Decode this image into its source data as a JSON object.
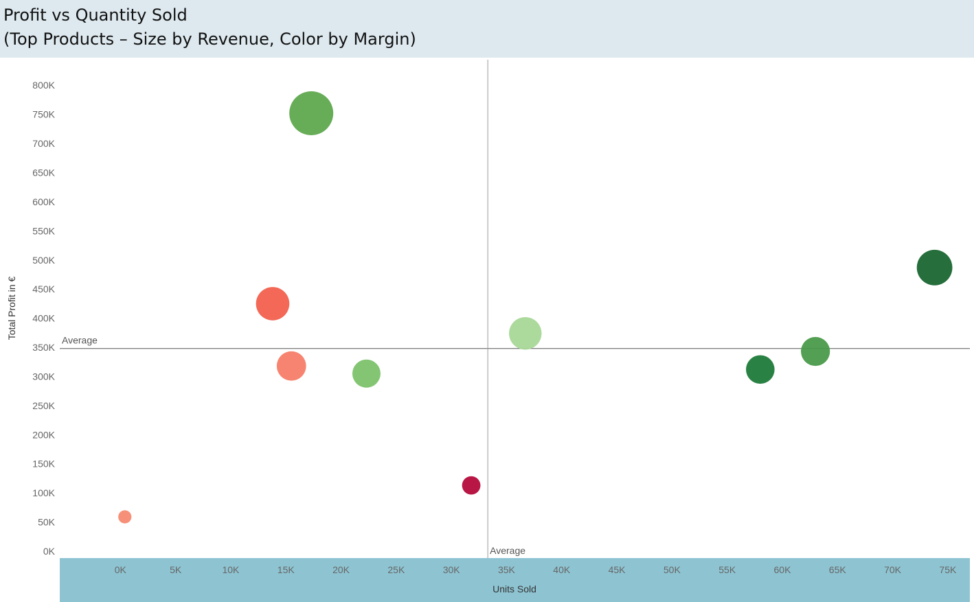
{
  "header": {
    "title_line1": "Profit vs Quantity Sold",
    "title_line2": "(Top Products – Size by Revenue, Color by Margin)"
  },
  "colors": {
    "title_background": "#dde9ef",
    "x_axis_background": "#8ec4d2",
    "reference_line": "#555555"
  },
  "chart_data": {
    "type": "scatter",
    "title": "Profit vs Quantity Sold",
    "subtitle": "(Top Products – Size by Revenue, Color by Margin)",
    "xlabel": "Units Sold",
    "ylabel": "Total Profit in €",
    "xlim": [
      -5500,
      77000
    ],
    "ylim": [
      0,
      825000
    ],
    "x_ticks": [
      {
        "value": 0,
        "label": "0K"
      },
      {
        "value": 5000,
        "label": "5K"
      },
      {
        "value": 10000,
        "label": "10K"
      },
      {
        "value": 15000,
        "label": "15K"
      },
      {
        "value": 20000,
        "label": "20K"
      },
      {
        "value": 25000,
        "label": "25K"
      },
      {
        "value": 30000,
        "label": "30K"
      },
      {
        "value": 35000,
        "label": "35K"
      },
      {
        "value": 40000,
        "label": "40K"
      },
      {
        "value": 45000,
        "label": "45K"
      },
      {
        "value": 50000,
        "label": "50K"
      },
      {
        "value": 55000,
        "label": "55K"
      },
      {
        "value": 60000,
        "label": "60K"
      },
      {
        "value": 65000,
        "label": "65K"
      },
      {
        "value": 70000,
        "label": "70K"
      },
      {
        "value": 75000,
        "label": "75K"
      }
    ],
    "y_ticks": [
      {
        "value": 0,
        "label": "0K"
      },
      {
        "value": 50000,
        "label": "50K"
      },
      {
        "value": 100000,
        "label": "100K"
      },
      {
        "value": 150000,
        "label": "150K"
      },
      {
        "value": 200000,
        "label": "200K"
      },
      {
        "value": 250000,
        "label": "250K"
      },
      {
        "value": 300000,
        "label": "300K"
      },
      {
        "value": 350000,
        "label": "350K"
      },
      {
        "value": 400000,
        "label": "400K"
      },
      {
        "value": 450000,
        "label": "450K"
      },
      {
        "value": 500000,
        "label": "500K"
      },
      {
        "value": 550000,
        "label": "550K"
      },
      {
        "value": 600000,
        "label": "600K"
      },
      {
        "value": 650000,
        "label": "650K"
      },
      {
        "value": 700000,
        "label": "700K"
      },
      {
        "value": 750000,
        "label": "750K"
      },
      {
        "value": 800000,
        "label": "800K"
      }
    ],
    "points": [
      {
        "x": 17300,
        "y": 752000,
        "size": 1.0,
        "color": "#5fa84e"
      },
      {
        "x": 13800,
        "y": 425000,
        "size": 0.76,
        "color": "#f2604d"
      },
      {
        "x": 15500,
        "y": 318000,
        "size": 0.67,
        "color": "#f77d68"
      },
      {
        "x": 22300,
        "y": 305000,
        "size": 0.64,
        "color": "#7cc26a"
      },
      {
        "x": 400,
        "y": 59000,
        "size": 0.3,
        "color": "#f78a71"
      },
      {
        "x": 31800,
        "y": 113000,
        "size": 0.42,
        "color": "#b4093a"
      },
      {
        "x": 36700,
        "y": 374000,
        "size": 0.74,
        "color": "#a8d797"
      },
      {
        "x": 58000,
        "y": 312000,
        "size": 0.65,
        "color": "#1e7a3a"
      },
      {
        "x": 63000,
        "y": 343000,
        "size": 0.66,
        "color": "#4a9a4a"
      },
      {
        "x": 73800,
        "y": 487000,
        "size": 0.81,
        "color": "#1a6632"
      }
    ],
    "reference_lines": [
      {
        "axis": "y",
        "value": 348000,
        "label": "Average"
      },
      {
        "axis": "x",
        "value": 33300,
        "label": "Average"
      }
    ],
    "grid": false,
    "legend": "none"
  }
}
